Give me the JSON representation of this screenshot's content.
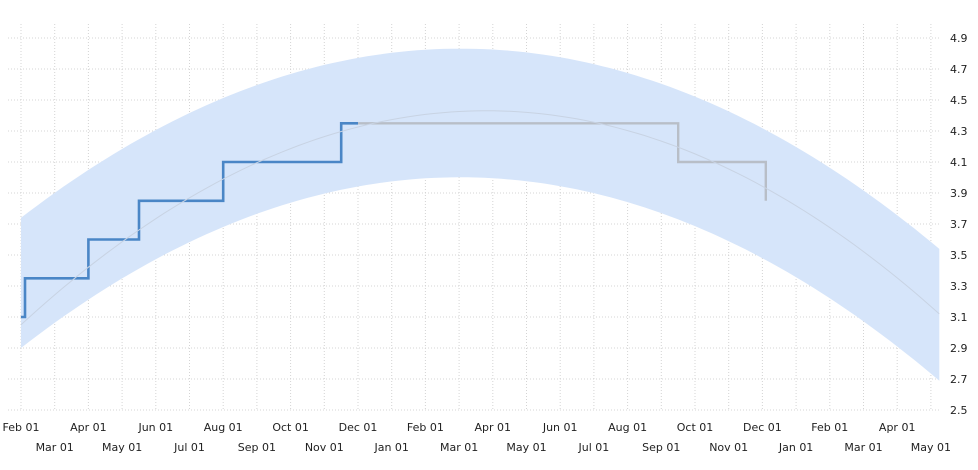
{
  "chart_data": {
    "type": "line",
    "title": "",
    "xlabel": "",
    "ylabel": "",
    "x_ticks_row1": [
      "Feb 01",
      "Apr 01",
      "Jun 01",
      "Aug 01",
      "Oct 01",
      "Dec 01",
      "Feb 01",
      "Apr 01",
      "Jun 01",
      "Aug 01",
      "Oct 01",
      "Dec 01",
      "Feb 01",
      "Apr 01"
    ],
    "x_ticks_row2": [
      "Mar 01",
      "May 01",
      "Jul 01",
      "Sep 01",
      "Nov 01",
      "Jan 01",
      "Mar 01",
      "May 01",
      "Jul 01",
      "Sep 01",
      "Nov 01",
      "Jan 01",
      "Mar 01",
      "May 01"
    ],
    "y_ticks": [
      "4.9",
      "4.7",
      "4.5",
      "4.3",
      "4.1",
      "3.9",
      "3.7",
      "3.5",
      "3.3",
      "3.1",
      "2.9",
      "2.7",
      "2.5"
    ],
    "ylim": [
      2.5,
      4.9
    ],
    "x_range_months": [
      0,
      27.3
    ],
    "grid": true,
    "y_axis_side": "right",
    "series": [
      {
        "role": "observed",
        "color": "#4a86c6",
        "x_months": [
          0,
          0.12,
          0.12,
          1,
          1,
          2,
          2,
          3,
          3,
          3.5,
          3.5,
          5,
          5,
          6,
          6,
          7,
          7,
          8,
          8,
          9,
          9,
          9.5,
          9.5,
          10
        ],
        "y": [
          3.1,
          3.1,
          3.35,
          3.35,
          3.35,
          3.35,
          3.6,
          3.6,
          3.6,
          3.6,
          3.85,
          3.85,
          3.85,
          3.85,
          4.1,
          4.1,
          4.1,
          4.1,
          4.1,
          4.1,
          4.1,
          4.1,
          4.35,
          4.35
        ]
      },
      {
        "role": "projected",
        "color": "#b8bec7",
        "x_months": [
          10,
          19.5,
          19.5,
          22.1,
          22.1
        ],
        "y": [
          4.35,
          4.35,
          4.1,
          4.1,
          3.85
        ]
      },
      {
        "role": "trend",
        "color": "#c8d3e3",
        "x_months": [
          0,
          13.5,
          27.3
        ],
        "y": [
          3.05,
          4.43,
          3.11
        ]
      }
    ],
    "band": {
      "color": "#d6e5fa",
      "x_months": [
        0,
        13.5,
        27.3
      ],
      "upper": [
        3.74,
        4.83,
        3.53
      ],
      "lower": [
        2.9,
        4.0,
        2.68
      ]
    }
  }
}
